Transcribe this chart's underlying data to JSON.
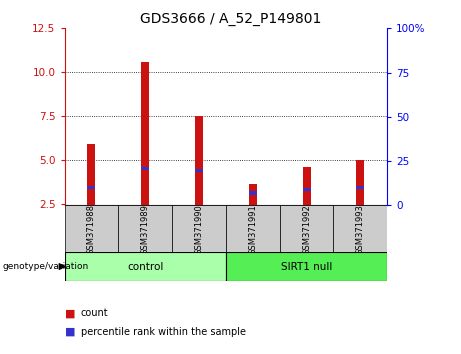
{
  "title": "GDS3666 / A_52_P149801",
  "samples": [
    "GSM371988",
    "GSM371989",
    "GSM371990",
    "GSM371991",
    "GSM371992",
    "GSM371993"
  ],
  "red_values": [
    5.9,
    10.6,
    7.5,
    3.6,
    4.6,
    5.0
  ],
  "blue_values": [
    3.4,
    4.5,
    4.4,
    3.1,
    3.3,
    3.4
  ],
  "base_value": 2.4,
  "left_ylim": [
    2.4,
    12.5
  ],
  "left_yticks": [
    2.5,
    5.0,
    7.5,
    10.0,
    12.5
  ],
  "right_ylim": [
    0,
    100
  ],
  "right_yticks": [
    0,
    25,
    50,
    75,
    100
  ],
  "right_yticklabels": [
    "0",
    "25",
    "50",
    "75",
    "100%"
  ],
  "grid_values": [
    5.0,
    7.5,
    10.0
  ],
  "control_label": "control",
  "sirt1_label": "SIRT1 null",
  "genotype_label": "genotype/variation",
  "legend_count": "count",
  "legend_percentile": "percentile rank within the sample",
  "bar_width": 0.15,
  "red_color": "#cc1111",
  "blue_color": "#3333cc",
  "control_bg": "#aaffaa",
  "sirt1_bg": "#55ee55",
  "header_bg": "#cccccc",
  "plot_bg": "#ffffff",
  "title_fontsize": 10,
  "tick_fontsize": 7.5,
  "label_fontsize": 7.5
}
